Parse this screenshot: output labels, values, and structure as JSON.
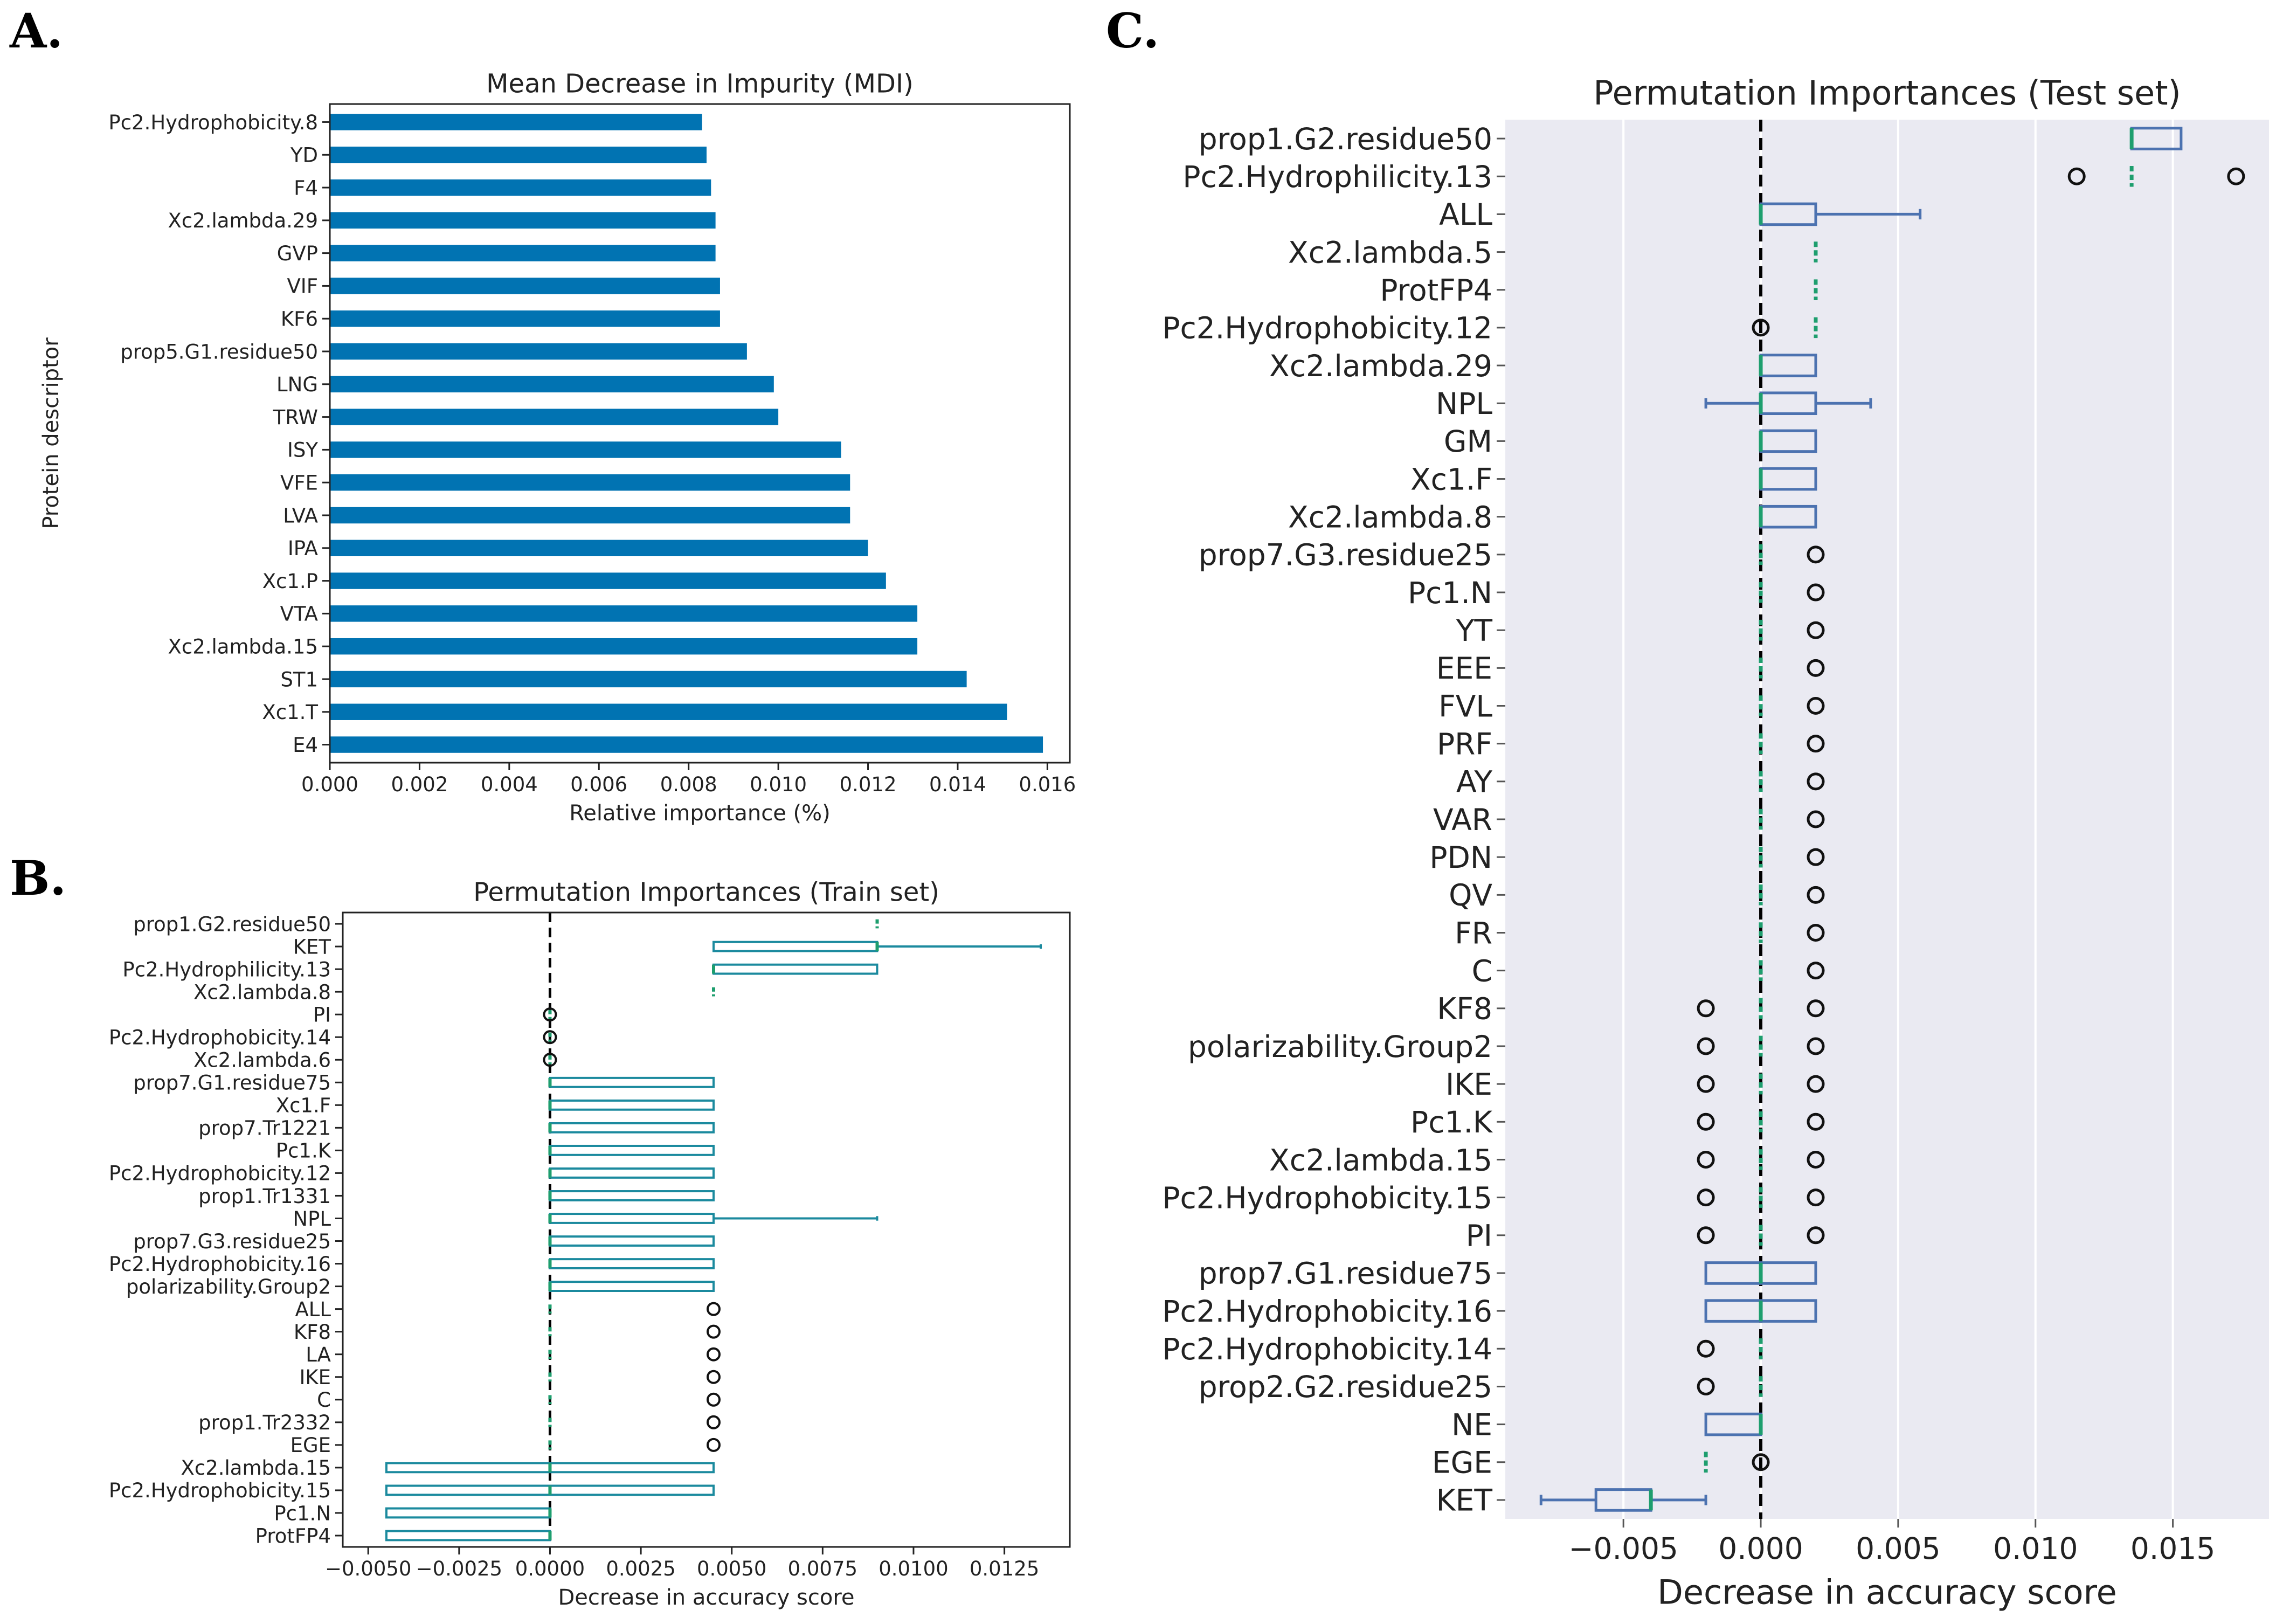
{
  "panel_labels": {
    "a": "A.",
    "b": "B.",
    "c": "C."
  },
  "chart_data": [
    {
      "id": "A",
      "type": "bar",
      "orientation": "horizontal",
      "title": "Mean Decrease in Impurity (MDI)",
      "xlabel": "Relative importance (%)",
      "ylabel": "Protein descriptor",
      "xlim": [
        0.0,
        0.0165
      ],
      "xticks": [
        0.0,
        0.002,
        0.004,
        0.006,
        0.008,
        0.01,
        0.012,
        0.014,
        0.016
      ],
      "xtick_labels": [
        "0.000",
        "0.002",
        "0.004",
        "0.006",
        "0.008",
        "0.010",
        "0.012",
        "0.014",
        "0.016"
      ],
      "bar_color": "#0173b2",
      "categories": [
        "Pc2.Hydrophobicity.8",
        "YD",
        "F4",
        "Xc2.lambda.29",
        "GVP",
        "VIF",
        "KF6",
        "prop5.G1.residue50",
        "LNG",
        "TRW",
        "ISY",
        "VFE",
        "LVA",
        "IPA",
        "Xc1.P",
        "VTA",
        "Xc2.lambda.15",
        "ST1",
        "Xc1.T",
        "E4"
      ],
      "values": [
        0.0083,
        0.0084,
        0.0085,
        0.0086,
        0.0086,
        0.0087,
        0.0087,
        0.0093,
        0.0099,
        0.01,
        0.0114,
        0.0116,
        0.0116,
        0.012,
        0.0124,
        0.0131,
        0.0131,
        0.0142,
        0.0151,
        0.0159
      ]
    },
    {
      "id": "B",
      "type": "box",
      "orientation": "horizontal",
      "title": "Permutation Importances (Train set)",
      "xlabel": "Decrease in accuracy score",
      "xlim": [
        -0.0057,
        0.0143
      ],
      "xticks": [
        -0.005,
        -0.0025,
        0.0,
        0.0025,
        0.005,
        0.0075,
        0.01,
        0.0125
      ],
      "xtick_labels": [
        "−0.0050",
        "−0.0025",
        "0.0000",
        "0.0025",
        "0.0050",
        "0.0075",
        "0.0100",
        "0.0125"
      ],
      "box_color": "#1b8a9e",
      "median_color": "#1e9e6e",
      "categories": [
        "prop1.G2.residue50",
        "KET",
        "Pc2.Hydrophilicity.13",
        "Xc2.lambda.8",
        "PI",
        "Pc2.Hydrophobicity.14",
        "Xc2.lambda.6",
        "prop7.G1.residue75",
        "Xc1.F",
        "prop7.Tr1221",
        "Pc1.K",
        "Pc2.Hydrophobicity.12",
        "prop1.Tr1331",
        "NPL",
        "prop7.G3.residue25",
        "Pc2.Hydrophobicity.16",
        "polarizability.Group2",
        "ALL",
        "KF8",
        "LA",
        "IKE",
        "C",
        "prop1.Tr2332",
        "EGE",
        "Xc2.lambda.15",
        "Pc2.Hydrophobicity.15",
        "Pc1.N",
        "ProtFP4"
      ],
      "boxes": [
        {
          "q1": 0.009,
          "median": 0.009,
          "q3": 0.009,
          "whislo": 0.009,
          "whishi": 0.009,
          "fliers": []
        },
        {
          "q1": 0.0045,
          "median": 0.009,
          "q3": 0.009,
          "whislo": 0.0045,
          "whishi": 0.0135,
          "fliers": []
        },
        {
          "q1": 0.0045,
          "median": 0.0045,
          "q3": 0.009,
          "whislo": 0.0045,
          "whishi": 0.009,
          "fliers": []
        },
        {
          "q1": 0.0045,
          "median": 0.0045,
          "q3": 0.0045,
          "whislo": 0.0045,
          "whishi": 0.0045,
          "fliers": []
        },
        {
          "q1": 0.0,
          "median": 0.0,
          "q3": 0.0,
          "whislo": 0.0,
          "whishi": 0.0,
          "fliers": [
            0.0
          ]
        },
        {
          "q1": 0.0,
          "median": 0.0,
          "q3": 0.0,
          "whislo": 0.0,
          "whishi": 0.0,
          "fliers": [
            0.0
          ]
        },
        {
          "q1": 0.0,
          "median": 0.0,
          "q3": 0.0,
          "whislo": 0.0,
          "whishi": 0.0,
          "fliers": [
            0.0
          ]
        },
        {
          "q1": 0.0,
          "median": 0.0,
          "q3": 0.0045,
          "whislo": 0.0,
          "whishi": 0.0045,
          "fliers": []
        },
        {
          "q1": 0.0,
          "median": 0.0,
          "q3": 0.0045,
          "whislo": 0.0,
          "whishi": 0.0045,
          "fliers": []
        },
        {
          "q1": 0.0,
          "median": 0.0,
          "q3": 0.0045,
          "whislo": 0.0,
          "whishi": 0.0045,
          "fliers": []
        },
        {
          "q1": 0.0,
          "median": 0.0,
          "q3": 0.0045,
          "whislo": 0.0,
          "whishi": 0.0045,
          "fliers": []
        },
        {
          "q1": 0.0,
          "median": 0.0,
          "q3": 0.0045,
          "whislo": 0.0,
          "whishi": 0.0045,
          "fliers": []
        },
        {
          "q1": 0.0,
          "median": 0.0,
          "q3": 0.0045,
          "whislo": 0.0,
          "whishi": 0.0045,
          "fliers": []
        },
        {
          "q1": 0.0,
          "median": 0.0,
          "q3": 0.0045,
          "whislo": 0.0,
          "whishi": 0.009,
          "fliers": []
        },
        {
          "q1": 0.0,
          "median": 0.0,
          "q3": 0.0045,
          "whislo": 0.0,
          "whishi": 0.0045,
          "fliers": []
        },
        {
          "q1": 0.0,
          "median": 0.0,
          "q3": 0.0045,
          "whislo": 0.0,
          "whishi": 0.0045,
          "fliers": []
        },
        {
          "q1": 0.0,
          "median": 0.0,
          "q3": 0.0045,
          "whislo": 0.0,
          "whishi": 0.0045,
          "fliers": []
        },
        {
          "q1": 0.0,
          "median": 0.0,
          "q3": 0.0,
          "whislo": 0.0,
          "whishi": 0.0,
          "fliers": [
            0.0045
          ]
        },
        {
          "q1": 0.0,
          "median": 0.0,
          "q3": 0.0,
          "whislo": 0.0,
          "whishi": 0.0,
          "fliers": [
            0.0045
          ]
        },
        {
          "q1": 0.0,
          "median": 0.0,
          "q3": 0.0,
          "whislo": 0.0,
          "whishi": 0.0,
          "fliers": [
            0.0045
          ]
        },
        {
          "q1": 0.0,
          "median": 0.0,
          "q3": 0.0,
          "whislo": 0.0,
          "whishi": 0.0,
          "fliers": [
            0.0045
          ]
        },
        {
          "q1": 0.0,
          "median": 0.0,
          "q3": 0.0,
          "whislo": 0.0,
          "whishi": 0.0,
          "fliers": [
            0.0045
          ]
        },
        {
          "q1": 0.0,
          "median": 0.0,
          "q3": 0.0,
          "whislo": 0.0,
          "whishi": 0.0,
          "fliers": [
            0.0045
          ]
        },
        {
          "q1": 0.0,
          "median": 0.0,
          "q3": 0.0,
          "whislo": 0.0,
          "whishi": 0.0,
          "fliers": [
            0.0045
          ]
        },
        {
          "q1": -0.0045,
          "median": 0.0,
          "q3": 0.0045,
          "whislo": -0.0045,
          "whishi": 0.0045,
          "fliers": []
        },
        {
          "q1": -0.0045,
          "median": 0.0,
          "q3": 0.0045,
          "whislo": -0.0045,
          "whishi": 0.0045,
          "fliers": []
        },
        {
          "q1": -0.0045,
          "median": 0.0,
          "q3": 0.0,
          "whislo": -0.0045,
          "whishi": 0.0,
          "fliers": []
        },
        {
          "q1": -0.0045,
          "median": 0.0,
          "q3": 0.0,
          "whislo": -0.0045,
          "whishi": 0.0,
          "fliers": []
        }
      ]
    },
    {
      "id": "C",
      "type": "box",
      "orientation": "horizontal",
      "title": "Permutation Importances (Test set)",
      "xlabel": "Decrease in accuracy score",
      "xlim": [
        -0.0093,
        0.0185
      ],
      "xticks": [
        -0.005,
        0.0,
        0.005,
        0.01,
        0.015
      ],
      "xtick_labels": [
        "−0.005",
        "0.000",
        "0.005",
        "0.010",
        "0.015"
      ],
      "grid": true,
      "background": "#eaeaf2",
      "box_color": "#4c72b0",
      "median_color": "#1e9e6e",
      "categories": [
        "prop1.G2.residue50",
        "Pc2.Hydrophilicity.13",
        "ALL",
        "Xc2.lambda.5",
        "ProtFP4",
        "Pc2.Hydrophobicity.12",
        "Xc2.lambda.29",
        "NPL",
        "GM",
        "Xc1.F",
        "Xc2.lambda.8",
        "prop7.G3.residue25",
        "Pc1.N",
        "YT",
        "EEE",
        "FVL",
        "PRF",
        "AY",
        "VAR",
        "PDN",
        "QV",
        "FR",
        "C",
        "KF8",
        "polarizability.Group2",
        "IKE",
        "Pc1.K",
        "Xc2.lambda.15",
        "Pc2.Hydrophobicity.15",
        "PI",
        "prop7.G1.residue75",
        "Pc2.Hydrophobicity.16",
        "Pc2.Hydrophobicity.14",
        "prop2.G2.residue25",
        "NE",
        "EGE",
        "KET"
      ],
      "boxes": [
        {
          "q1": 0.0135,
          "median": 0.0135,
          "q3": 0.0153,
          "whislo": 0.0135,
          "whishi": 0.0153,
          "fliers": []
        },
        {
          "q1": 0.0135,
          "median": 0.0135,
          "q3": 0.0135,
          "whislo": 0.0135,
          "whishi": 0.0135,
          "fliers": [
            0.0115,
            0.0173
          ]
        },
        {
          "q1": 0.0,
          "median": 0.0,
          "q3": 0.002,
          "whislo": 0.0,
          "whishi": 0.0058,
          "fliers": []
        },
        {
          "q1": 0.002,
          "median": 0.002,
          "q3": 0.002,
          "whislo": 0.002,
          "whishi": 0.002,
          "fliers": []
        },
        {
          "q1": 0.002,
          "median": 0.002,
          "q3": 0.002,
          "whislo": 0.002,
          "whishi": 0.002,
          "fliers": []
        },
        {
          "q1": 0.002,
          "median": 0.002,
          "q3": 0.002,
          "whislo": 0.002,
          "whishi": 0.002,
          "fliers": [
            0.0
          ]
        },
        {
          "q1": 0.0,
          "median": 0.0,
          "q3": 0.002,
          "whislo": 0.0,
          "whishi": 0.002,
          "fliers": []
        },
        {
          "q1": 0.0,
          "median": 0.0,
          "q3": 0.002,
          "whislo": -0.002,
          "whishi": 0.004,
          "fliers": []
        },
        {
          "q1": 0.0,
          "median": 0.0,
          "q3": 0.002,
          "whislo": 0.0,
          "whishi": 0.002,
          "fliers": []
        },
        {
          "q1": 0.0,
          "median": 0.0,
          "q3": 0.002,
          "whislo": 0.0,
          "whishi": 0.002,
          "fliers": []
        },
        {
          "q1": 0.0,
          "median": 0.0,
          "q3": 0.002,
          "whislo": 0.0,
          "whishi": 0.002,
          "fliers": []
        },
        {
          "q1": 0.0,
          "median": 0.0,
          "q3": 0.0,
          "whislo": 0.0,
          "whishi": 0.0,
          "fliers": [
            0.002
          ]
        },
        {
          "q1": 0.0,
          "median": 0.0,
          "q3": 0.0,
          "whislo": 0.0,
          "whishi": 0.0,
          "fliers": [
            0.002
          ]
        },
        {
          "q1": 0.0,
          "median": 0.0,
          "q3": 0.0,
          "whislo": 0.0,
          "whishi": 0.0,
          "fliers": [
            0.002
          ]
        },
        {
          "q1": 0.0,
          "median": 0.0,
          "q3": 0.0,
          "whislo": 0.0,
          "whishi": 0.0,
          "fliers": [
            0.002
          ]
        },
        {
          "q1": 0.0,
          "median": 0.0,
          "q3": 0.0,
          "whislo": 0.0,
          "whishi": 0.0,
          "fliers": [
            0.002
          ]
        },
        {
          "q1": 0.0,
          "median": 0.0,
          "q3": 0.0,
          "whislo": 0.0,
          "whishi": 0.0,
          "fliers": [
            0.002
          ]
        },
        {
          "q1": 0.0,
          "median": 0.0,
          "q3": 0.0,
          "whislo": 0.0,
          "whishi": 0.0,
          "fliers": [
            0.002
          ]
        },
        {
          "q1": 0.0,
          "median": 0.0,
          "q3": 0.0,
          "whislo": 0.0,
          "whishi": 0.0,
          "fliers": [
            0.002
          ]
        },
        {
          "q1": 0.0,
          "median": 0.0,
          "q3": 0.0,
          "whislo": 0.0,
          "whishi": 0.0,
          "fliers": [
            0.002
          ]
        },
        {
          "q1": 0.0,
          "median": 0.0,
          "q3": 0.0,
          "whislo": 0.0,
          "whishi": 0.0,
          "fliers": [
            0.002
          ]
        },
        {
          "q1": 0.0,
          "median": 0.0,
          "q3": 0.0,
          "whislo": 0.0,
          "whishi": 0.0,
          "fliers": [
            0.002
          ]
        },
        {
          "q1": 0.0,
          "median": 0.0,
          "q3": 0.0,
          "whislo": 0.0,
          "whishi": 0.0,
          "fliers": [
            0.002
          ]
        },
        {
          "q1": 0.0,
          "median": 0.0,
          "q3": 0.0,
          "whislo": 0.0,
          "whishi": 0.0,
          "fliers": [
            -0.002,
            0.002
          ]
        },
        {
          "q1": 0.0,
          "median": 0.0,
          "q3": 0.0,
          "whislo": 0.0,
          "whishi": 0.0,
          "fliers": [
            -0.002,
            0.002
          ]
        },
        {
          "q1": 0.0,
          "median": 0.0,
          "q3": 0.0,
          "whislo": 0.0,
          "whishi": 0.0,
          "fliers": [
            -0.002,
            0.002
          ]
        },
        {
          "q1": 0.0,
          "median": 0.0,
          "q3": 0.0,
          "whislo": 0.0,
          "whishi": 0.0,
          "fliers": [
            -0.002,
            0.002
          ]
        },
        {
          "q1": 0.0,
          "median": 0.0,
          "q3": 0.0,
          "whislo": 0.0,
          "whishi": 0.0,
          "fliers": [
            -0.002,
            0.002
          ]
        },
        {
          "q1": 0.0,
          "median": 0.0,
          "q3": 0.0,
          "whislo": 0.0,
          "whishi": 0.0,
          "fliers": [
            -0.002,
            0.002
          ]
        },
        {
          "q1": 0.0,
          "median": 0.0,
          "q3": 0.0,
          "whislo": 0.0,
          "whishi": 0.0,
          "fliers": [
            -0.002,
            0.002
          ]
        },
        {
          "q1": -0.002,
          "median": 0.0,
          "q3": 0.002,
          "whislo": -0.002,
          "whishi": 0.002,
          "fliers": []
        },
        {
          "q1": -0.002,
          "median": 0.0,
          "q3": 0.002,
          "whislo": -0.002,
          "whishi": 0.002,
          "fliers": []
        },
        {
          "q1": 0.0,
          "median": 0.0,
          "q3": 0.0,
          "whislo": 0.0,
          "whishi": 0.0,
          "fliers": [
            -0.002
          ]
        },
        {
          "q1": 0.0,
          "median": 0.0,
          "q3": 0.0,
          "whislo": 0.0,
          "whishi": 0.0,
          "fliers": [
            -0.002
          ]
        },
        {
          "q1": -0.002,
          "median": 0.0,
          "q3": 0.0,
          "whislo": -0.002,
          "whishi": 0.0,
          "fliers": []
        },
        {
          "q1": -0.002,
          "median": -0.002,
          "q3": -0.002,
          "whislo": -0.002,
          "whishi": -0.002,
          "fliers": [
            0.0
          ]
        },
        {
          "q1": -0.006,
          "median": -0.004,
          "q3": -0.004,
          "whislo": -0.008,
          "whishi": -0.002,
          "fliers": []
        }
      ]
    }
  ]
}
